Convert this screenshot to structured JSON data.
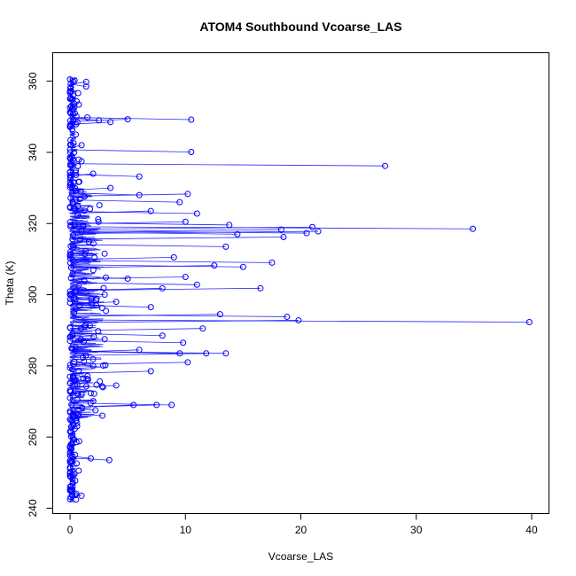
{
  "chart_data": {
    "type": "line",
    "title": "ATOM4 Southbound Vcoarse_LAS",
    "xlabel": "Vcoarse_LAS",
    "ylabel": "Theta (K)",
    "xlim": [
      -1.5,
      41.5
    ],
    "ylim": [
      238.5,
      368
    ],
    "xticks": [
      0,
      10,
      20,
      30,
      40
    ],
    "yticks": [
      240,
      260,
      280,
      300,
      320,
      340,
      360
    ],
    "grid": false,
    "legend": "none",
    "series_color": "#0000ff",
    "series": [
      {
        "points": [
          {
            "x": 0.0,
            "y": 242.5
          },
          {
            "x": 1.0,
            "y": 243.5
          },
          {
            "x": 0.0,
            "y": 246.0
          },
          {
            "x": 0.0,
            "y": 249.0
          },
          {
            "x": 0.0,
            "y": 251.5
          },
          {
            "x": 3.4,
            "y": 253.5
          },
          {
            "x": 0.2,
            "y": 254.5
          },
          {
            "x": 1.8,
            "y": 254.0
          },
          {
            "x": 0.1,
            "y": 258.0
          },
          {
            "x": 0.2,
            "y": 260.5
          },
          {
            "x": 0.3,
            "y": 263.5
          },
          {
            "x": 2.8,
            "y": 266.0
          },
          {
            "x": 0.5,
            "y": 264.5
          },
          {
            "x": 2.2,
            "y": 267.5
          },
          {
            "x": 7.5,
            "y": 269.0
          },
          {
            "x": 8.8,
            "y": 269.0
          },
          {
            "x": 5.5,
            "y": 269.0
          },
          {
            "x": 1.0,
            "y": 272.0
          },
          {
            "x": 4.0,
            "y": 274.5
          },
          {
            "x": 0.5,
            "y": 276.0
          },
          {
            "x": 7.0,
            "y": 278.5
          },
          {
            "x": 2.0,
            "y": 280.0
          },
          {
            "x": 10.2,
            "y": 281.0
          },
          {
            "x": 13.5,
            "y": 283.5
          },
          {
            "x": 11.8,
            "y": 283.5
          },
          {
            "x": 9.5,
            "y": 283.5
          },
          {
            "x": 6.0,
            "y": 284.5
          },
          {
            "x": 9.8,
            "y": 286.5
          },
          {
            "x": 3.0,
            "y": 287.5
          },
          {
            "x": 8.0,
            "y": 288.5
          },
          {
            "x": 11.5,
            "y": 290.5
          },
          {
            "x": 39.8,
            "y": 292.3
          },
          {
            "x": 19.8,
            "y": 292.8
          },
          {
            "x": 18.8,
            "y": 293.8
          },
          {
            "x": 13.0,
            "y": 294.5
          },
          {
            "x": 7.0,
            "y": 296.5
          },
          {
            "x": 4.0,
            "y": 298.0
          },
          {
            "x": 3.0,
            "y": 300.0
          },
          {
            "x": 16.5,
            "y": 301.8
          },
          {
            "x": 11.0,
            "y": 302.8
          },
          {
            "x": 8.0,
            "y": 301.8
          },
          {
            "x": 5.0,
            "y": 304.5
          },
          {
            "x": 10.0,
            "y": 305.0
          },
          {
            "x": 15.0,
            "y": 307.8
          },
          {
            "x": 12.5,
            "y": 308.2
          },
          {
            "x": 17.5,
            "y": 309.0
          },
          {
            "x": 9.0,
            "y": 310.5
          },
          {
            "x": 13.5,
            "y": 313.5
          },
          {
            "x": 18.5,
            "y": 316.2
          },
          {
            "x": 20.5,
            "y": 317.3
          },
          {
            "x": 21.5,
            "y": 317.8
          },
          {
            "x": 14.5,
            "y": 317.0
          },
          {
            "x": 18.3,
            "y": 318.3
          },
          {
            "x": 34.9,
            "y": 318.5
          },
          {
            "x": 21.0,
            "y": 319.0
          },
          {
            "x": 13.8,
            "y": 319.6
          },
          {
            "x": 10.0,
            "y": 320.5
          },
          {
            "x": 11.0,
            "y": 322.8
          },
          {
            "x": 7.0,
            "y": 323.5
          },
          {
            "x": 9.5,
            "y": 326.0
          },
          {
            "x": 10.2,
            "y": 328.3
          },
          {
            "x": 6.0,
            "y": 328.0
          },
          {
            "x": 3.5,
            "y": 330.0
          },
          {
            "x": 6.0,
            "y": 333.2
          },
          {
            "x": 2.0,
            "y": 334.0
          },
          {
            "x": 27.3,
            "y": 336.2
          },
          {
            "x": 1.0,
            "y": 337.5
          },
          {
            "x": 10.5,
            "y": 340.1
          },
          {
            "x": 1.0,
            "y": 342.0
          },
          {
            "x": 0.5,
            "y": 345.0
          },
          {
            "x": 3.5,
            "y": 348.5
          },
          {
            "x": 2.5,
            "y": 349.0
          },
          {
            "x": 5.0,
            "y": 349.3
          },
          {
            "x": 10.5,
            "y": 349.2
          },
          {
            "x": 1.5,
            "y": 349.8
          },
          {
            "x": 0.3,
            "y": 352.0
          },
          {
            "x": 0.2,
            "y": 355.0
          },
          {
            "x": 1.4,
            "y": 358.5
          },
          {
            "x": 1.4,
            "y": 359.8
          },
          {
            "x": 0.3,
            "y": 359.8
          },
          {
            "x": 0.0,
            "y": 360.5
          }
        ]
      }
    ]
  }
}
